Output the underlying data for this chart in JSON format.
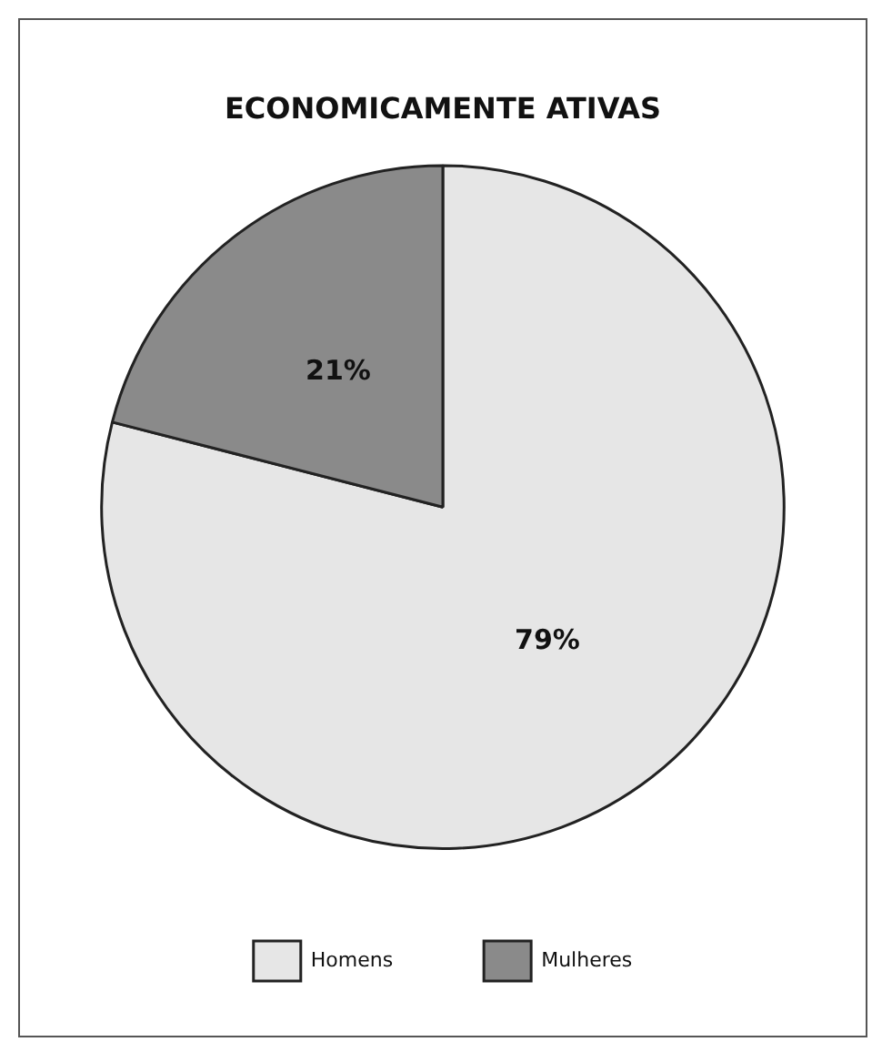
{
  "chart_data": {
    "type": "pie",
    "title": "ECONOMICAMENTE ATIVAS",
    "categories": [
      "Homens",
      "Mulheres"
    ],
    "values": [
      79,
      21
    ],
    "colors": [
      "#e6e6e6",
      "#8a8a8a"
    ],
    "value_labels": [
      "79%",
      "21%"
    ],
    "legend": "bottom"
  }
}
